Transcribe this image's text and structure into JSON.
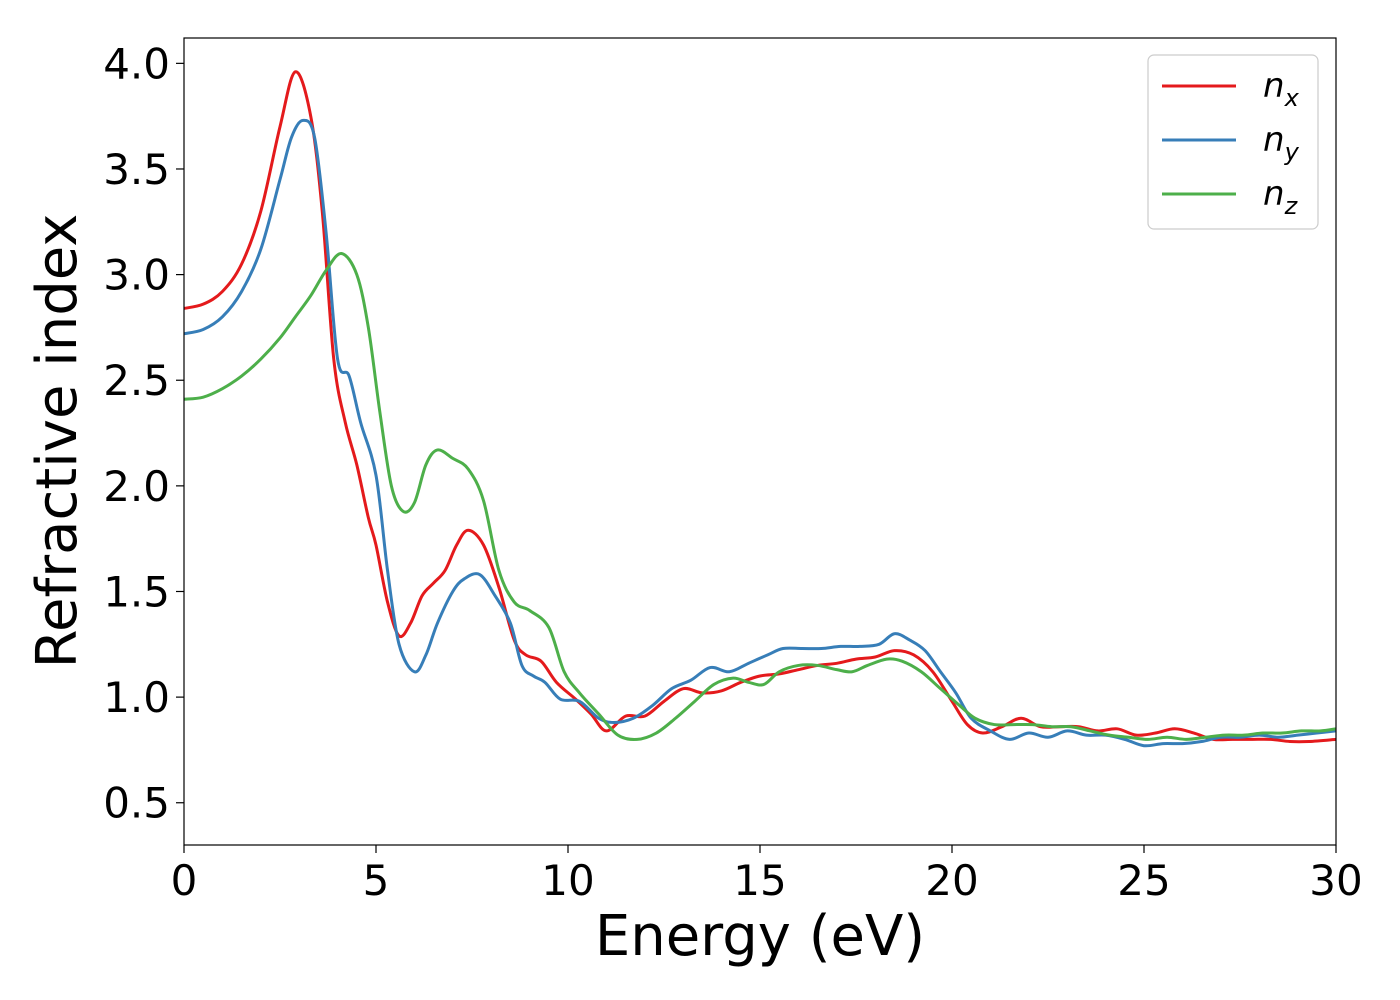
{
  "chart_data": {
    "type": "line",
    "title": "",
    "xlabel": "Energy (eV)",
    "ylabel": "Refractive index",
    "xlim": [
      0,
      30
    ],
    "ylim": [
      0.3,
      4.12
    ],
    "xticks": [
      0,
      5,
      10,
      15,
      20,
      25,
      30
    ],
    "xtick_labels": [
      "0",
      "5",
      "10",
      "15",
      "20",
      "25",
      "30"
    ],
    "yticks": [
      0.5,
      1.0,
      1.5,
      2.0,
      2.5,
      3.0,
      3.5,
      4.0
    ],
    "ytick_labels": [
      "0.5",
      "1.0",
      "1.5",
      "2.0",
      "2.5",
      "3.0",
      "3.5",
      "4.0"
    ],
    "grid": false,
    "legend_position": "top-right",
    "series": [
      {
        "name": "n_x",
        "color": "#e41a1c",
        "points": [
          [
            0,
            2.84
          ],
          [
            0.5,
            2.86
          ],
          [
            1.0,
            2.92
          ],
          [
            1.5,
            3.05
          ],
          [
            2.0,
            3.3
          ],
          [
            2.5,
            3.7
          ],
          [
            2.9,
            3.96
          ],
          [
            3.3,
            3.75
          ],
          [
            3.6,
            3.3
          ],
          [
            3.9,
            2.6
          ],
          [
            4.2,
            2.3
          ],
          [
            4.5,
            2.1
          ],
          [
            4.8,
            1.85
          ],
          [
            5.0,
            1.72
          ],
          [
            5.3,
            1.45
          ],
          [
            5.6,
            1.29
          ],
          [
            5.9,
            1.35
          ],
          [
            6.2,
            1.48
          ],
          [
            6.5,
            1.54
          ],
          [
            6.8,
            1.6
          ],
          [
            7.1,
            1.72
          ],
          [
            7.4,
            1.79
          ],
          [
            7.8,
            1.72
          ],
          [
            8.2,
            1.52
          ],
          [
            8.6,
            1.27
          ],
          [
            8.9,
            1.2
          ],
          [
            9.3,
            1.17
          ],
          [
            9.7,
            1.07
          ],
          [
            10.2,
            0.99
          ],
          [
            10.6,
            0.92
          ],
          [
            11.0,
            0.84
          ],
          [
            11.5,
            0.91
          ],
          [
            12.0,
            0.91
          ],
          [
            12.5,
            0.98
          ],
          [
            13.0,
            1.04
          ],
          [
            13.5,
            1.02
          ],
          [
            14.0,
            1.03
          ],
          [
            14.5,
            1.07
          ],
          [
            15.0,
            1.1
          ],
          [
            15.5,
            1.11
          ],
          [
            16.0,
            1.13
          ],
          [
            16.5,
            1.15
          ],
          [
            17.0,
            1.16
          ],
          [
            17.5,
            1.18
          ],
          [
            18.0,
            1.19
          ],
          [
            18.5,
            1.22
          ],
          [
            19.0,
            1.2
          ],
          [
            19.5,
            1.12
          ],
          [
            20.0,
            0.98
          ],
          [
            20.4,
            0.87
          ],
          [
            20.8,
            0.83
          ],
          [
            21.3,
            0.86
          ],
          [
            21.8,
            0.9
          ],
          [
            22.3,
            0.86
          ],
          [
            22.8,
            0.86
          ],
          [
            23.3,
            0.86
          ],
          [
            23.8,
            0.84
          ],
          [
            24.3,
            0.85
          ],
          [
            24.8,
            0.82
          ],
          [
            25.3,
            0.83
          ],
          [
            25.8,
            0.85
          ],
          [
            26.3,
            0.83
          ],
          [
            26.8,
            0.8
          ],
          [
            27.3,
            0.8
          ],
          [
            27.8,
            0.8
          ],
          [
            28.3,
            0.8
          ],
          [
            28.8,
            0.79
          ],
          [
            29.3,
            0.79
          ],
          [
            30.0,
            0.8
          ]
        ]
      },
      {
        "name": "n_y",
        "color": "#377eb8",
        "points": [
          [
            0,
            2.72
          ],
          [
            0.5,
            2.74
          ],
          [
            1.0,
            2.8
          ],
          [
            1.5,
            2.92
          ],
          [
            2.0,
            3.12
          ],
          [
            2.5,
            3.45
          ],
          [
            2.8,
            3.65
          ],
          [
            3.1,
            3.73
          ],
          [
            3.4,
            3.65
          ],
          [
            3.7,
            3.2
          ],
          [
            4.0,
            2.6
          ],
          [
            4.3,
            2.52
          ],
          [
            4.6,
            2.3
          ],
          [
            5.0,
            2.05
          ],
          [
            5.3,
            1.6
          ],
          [
            5.6,
            1.25
          ],
          [
            6.0,
            1.12
          ],
          [
            6.3,
            1.2
          ],
          [
            6.6,
            1.35
          ],
          [
            7.0,
            1.5
          ],
          [
            7.3,
            1.56
          ],
          [
            7.7,
            1.58
          ],
          [
            8.1,
            1.48
          ],
          [
            8.5,
            1.35
          ],
          [
            8.8,
            1.15
          ],
          [
            9.1,
            1.1
          ],
          [
            9.4,
            1.07
          ],
          [
            9.8,
            0.99
          ],
          [
            10.3,
            0.98
          ],
          [
            10.8,
            0.9
          ],
          [
            11.2,
            0.88
          ],
          [
            11.7,
            0.9
          ],
          [
            12.2,
            0.96
          ],
          [
            12.7,
            1.04
          ],
          [
            13.2,
            1.08
          ],
          [
            13.7,
            1.14
          ],
          [
            14.2,
            1.12
          ],
          [
            14.7,
            1.16
          ],
          [
            15.2,
            1.2
          ],
          [
            15.6,
            1.23
          ],
          [
            16.1,
            1.23
          ],
          [
            16.6,
            1.23
          ],
          [
            17.1,
            1.24
          ],
          [
            17.6,
            1.24
          ],
          [
            18.1,
            1.25
          ],
          [
            18.5,
            1.3
          ],
          [
            18.9,
            1.27
          ],
          [
            19.3,
            1.22
          ],
          [
            19.7,
            1.12
          ],
          [
            20.1,
            1.02
          ],
          [
            20.5,
            0.9
          ],
          [
            21.0,
            0.84
          ],
          [
            21.5,
            0.8
          ],
          [
            22.0,
            0.83
          ],
          [
            22.5,
            0.81
          ],
          [
            23.0,
            0.84
          ],
          [
            23.5,
            0.82
          ],
          [
            24.0,
            0.82
          ],
          [
            24.5,
            0.8
          ],
          [
            25.0,
            0.77
          ],
          [
            25.5,
            0.78
          ],
          [
            26.0,
            0.78
          ],
          [
            26.5,
            0.79
          ],
          [
            27.0,
            0.81
          ],
          [
            27.5,
            0.81
          ],
          [
            28.0,
            0.82
          ],
          [
            28.5,
            0.81
          ],
          [
            29.0,
            0.82
          ],
          [
            29.5,
            0.83
          ],
          [
            30.0,
            0.84
          ]
        ]
      },
      {
        "name": "n_z",
        "color": "#4daf4a",
        "points": [
          [
            0,
            2.41
          ],
          [
            0.5,
            2.42
          ],
          [
            1.0,
            2.46
          ],
          [
            1.5,
            2.52
          ],
          [
            2.0,
            2.6
          ],
          [
            2.5,
            2.7
          ],
          [
            2.9,
            2.8
          ],
          [
            3.3,
            2.9
          ],
          [
            3.7,
            3.02
          ],
          [
            4.1,
            3.1
          ],
          [
            4.5,
            3.0
          ],
          [
            4.8,
            2.75
          ],
          [
            5.1,
            2.35
          ],
          [
            5.4,
            2.0
          ],
          [
            5.7,
            1.88
          ],
          [
            6.0,
            1.92
          ],
          [
            6.3,
            2.1
          ],
          [
            6.6,
            2.17
          ],
          [
            7.0,
            2.13
          ],
          [
            7.4,
            2.08
          ],
          [
            7.8,
            1.93
          ],
          [
            8.2,
            1.6
          ],
          [
            8.6,
            1.45
          ],
          [
            9.0,
            1.41
          ],
          [
            9.5,
            1.33
          ],
          [
            9.9,
            1.12
          ],
          [
            10.3,
            1.02
          ],
          [
            10.8,
            0.92
          ],
          [
            11.3,
            0.82
          ],
          [
            11.8,
            0.8
          ],
          [
            12.3,
            0.83
          ],
          [
            12.8,
            0.9
          ],
          [
            13.3,
            0.98
          ],
          [
            13.8,
            1.06
          ],
          [
            14.3,
            1.09
          ],
          [
            14.7,
            1.07
          ],
          [
            15.1,
            1.06
          ],
          [
            15.5,
            1.12
          ],
          [
            16.0,
            1.15
          ],
          [
            16.5,
            1.15
          ],
          [
            17.0,
            1.13
          ],
          [
            17.4,
            1.12
          ],
          [
            17.8,
            1.15
          ],
          [
            18.3,
            1.18
          ],
          [
            18.7,
            1.17
          ],
          [
            19.2,
            1.12
          ],
          [
            19.7,
            1.04
          ],
          [
            20.2,
            0.96
          ],
          [
            20.6,
            0.9
          ],
          [
            21.1,
            0.87
          ],
          [
            21.6,
            0.87
          ],
          [
            22.1,
            0.87
          ],
          [
            22.6,
            0.86
          ],
          [
            23.1,
            0.86
          ],
          [
            23.6,
            0.84
          ],
          [
            24.1,
            0.82
          ],
          [
            24.6,
            0.81
          ],
          [
            25.1,
            0.8
          ],
          [
            25.6,
            0.81
          ],
          [
            26.1,
            0.8
          ],
          [
            26.6,
            0.81
          ],
          [
            27.1,
            0.82
          ],
          [
            27.6,
            0.82
          ],
          [
            28.1,
            0.83
          ],
          [
            28.6,
            0.83
          ],
          [
            29.1,
            0.84
          ],
          [
            29.6,
            0.84
          ],
          [
            30.0,
            0.85
          ]
        ]
      }
    ]
  }
}
